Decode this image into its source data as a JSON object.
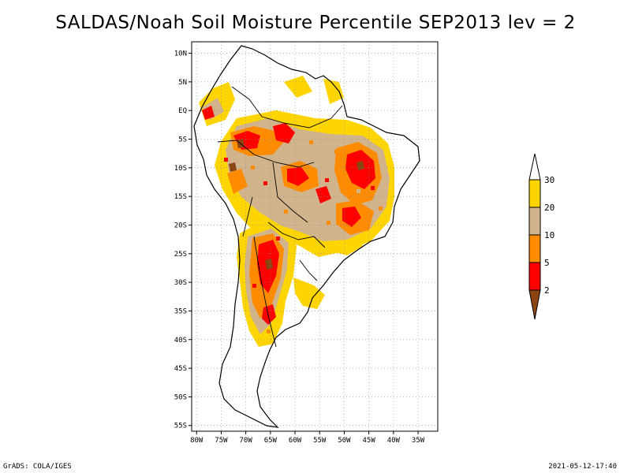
{
  "title": "SALDAS/Noah Soil Moisture Percentile SEP2013 lev = 2",
  "map": {
    "region": "South America",
    "lon_range": [
      -81,
      -31
    ],
    "lat_range": [
      -56,
      12
    ],
    "lat_ticks": [
      {
        "lat": 10,
        "label": "10N"
      },
      {
        "lat": 5,
        "label": "5N"
      },
      {
        "lat": 0,
        "label": "EQ"
      },
      {
        "lat": -5,
        "label": "5S"
      },
      {
        "lat": -10,
        "label": "10S"
      },
      {
        "lat": -15,
        "label": "15S"
      },
      {
        "lat": -20,
        "label": "20S"
      },
      {
        "lat": -25,
        "label": "25S"
      },
      {
        "lat": -30,
        "label": "30S"
      },
      {
        "lat": -35,
        "label": "35S"
      },
      {
        "lat": -40,
        "label": "40S"
      },
      {
        "lat": -45,
        "label": "45S"
      },
      {
        "lat": -50,
        "label": "50S"
      },
      {
        "lat": -55,
        "label": "55S"
      }
    ],
    "lon_ticks": [
      {
        "lon": -80,
        "label": "80W"
      },
      {
        "lon": -75,
        "label": "75W"
      },
      {
        "lon": -70,
        "label": "70W"
      },
      {
        "lon": -65,
        "label": "65W"
      },
      {
        "lon": -60,
        "label": "60W"
      },
      {
        "lon": -55,
        "label": "55W"
      },
      {
        "lon": -50,
        "label": "50W"
      },
      {
        "lon": -45,
        "label": "45W"
      },
      {
        "lon": -40,
        "label": "40W"
      },
      {
        "lon": -35,
        "label": "35W"
      }
    ],
    "grid": "dotted"
  },
  "legend": {
    "bins": [
      {
        "label": "",
        "color": "#ffffff"
      },
      {
        "label": "30",
        "color": "#ffd500"
      },
      {
        "label": "20",
        "color": "#d2b48c"
      },
      {
        "label": "10",
        "color": "#ff8c00"
      },
      {
        "label": "5",
        "color": "#ff0000"
      },
      {
        "label": "2",
        "color": "#8b4513"
      }
    ]
  },
  "colors": {
    "p20_30": "#ffd500",
    "p10_20": "#d2b48c",
    "p5_10": "#ff8c00",
    "p2_5": "#ff0000",
    "p0_2": "#8b4513"
  },
  "footer": {
    "left": "GrADS: COLA/IGES",
    "right": "2021-05-12-17:40"
  }
}
